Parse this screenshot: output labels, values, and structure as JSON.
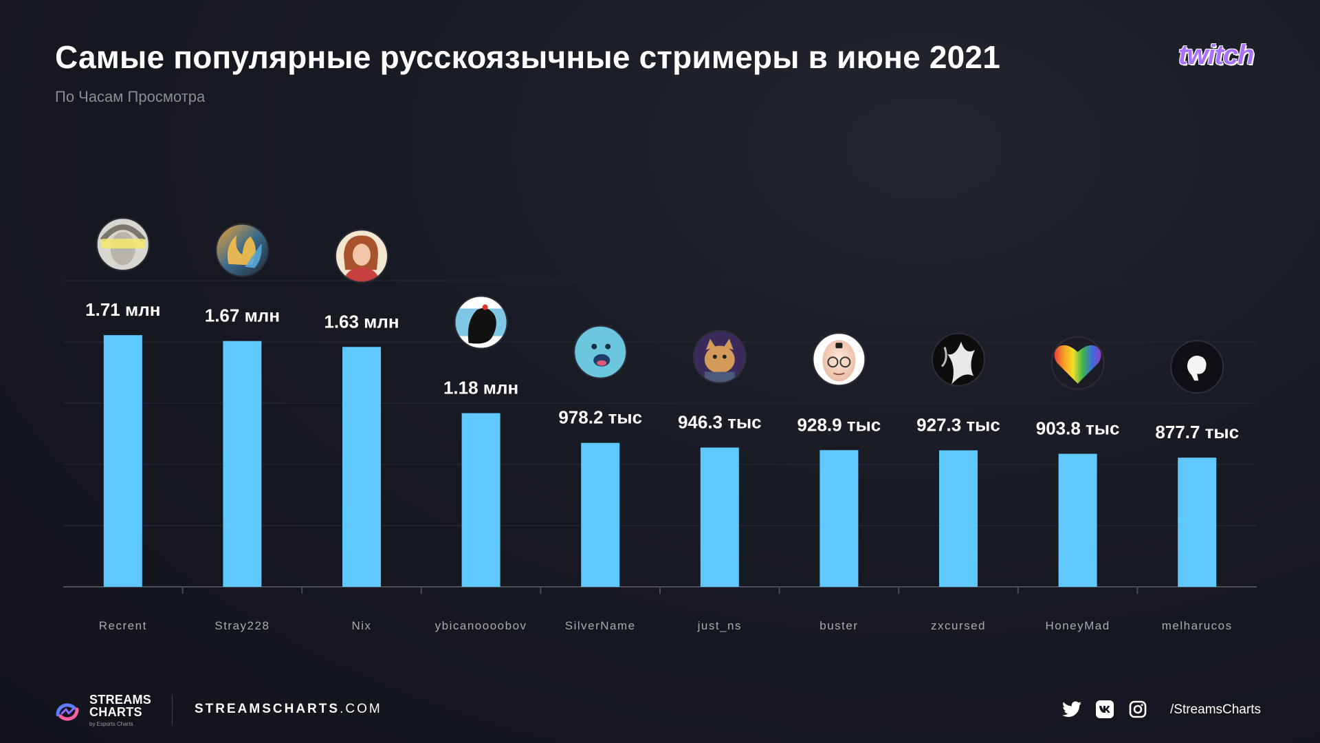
{
  "header": {
    "title": "Самые популярные русскоязычные стримеры в июне 2021",
    "subtitle": "По Часам Просмотра",
    "brand": "twitch"
  },
  "colors": {
    "bar": "#5ec8ff",
    "background": "#161822",
    "axis": "#4a4c58",
    "twitch": "#a970ff"
  },
  "chart_data": {
    "type": "bar",
    "categories": [
      "Recrent",
      "Stray228",
      "Nix",
      "ybicanoooobov",
      "SilverName",
      "just_ns",
      "buster",
      "zxcursed",
      "HoneyMad",
      "melharucos"
    ],
    "values": [
      1710000,
      1670000,
      1630000,
      1180000,
      978200,
      946300,
      928900,
      927300,
      903800,
      877700
    ],
    "value_labels": [
      "1.71 млн",
      "1.67 млн",
      "1.63 млн",
      "1.18 млн",
      "978.2 тыс",
      "946.3 тыс",
      "928.9 тыс",
      "927.3 тыс",
      "903.8 тыс",
      "877.7 тыс"
    ],
    "avatars": [
      "recrent-avatar",
      "stray228-avatar",
      "nix-avatar",
      "ybicanoooobov-avatar",
      "silvername-avatar",
      "just-ns-avatar",
      "buster-avatar",
      "zxcursed-avatar",
      "honeymad-avatar",
      "melharucos-avatar"
    ],
    "ylim": [
      0,
      2150000
    ],
    "grid": true,
    "legend": "none"
  },
  "footer": {
    "logo_line1": "STREAMS",
    "logo_line2": "CHARTS",
    "logo_by": "by Esports Charts",
    "site_bold": "STREAMSCHARTS",
    "site_rest": ".COM",
    "handle": "/StreamsCharts",
    "socials": [
      "twitter-icon",
      "vk-icon",
      "instagram-icon"
    ]
  }
}
